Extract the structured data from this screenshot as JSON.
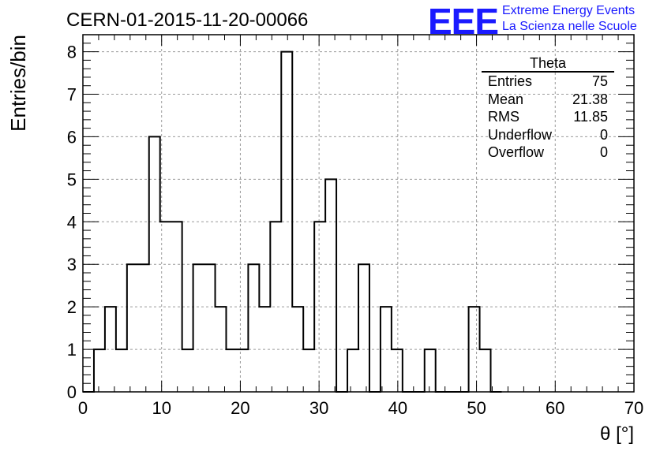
{
  "title": "CERN-01-2015-11-20-00066",
  "logo": {
    "text": "EEE",
    "line1": "Extreme Energy Events",
    "line2": "La Scienza nelle Scuole",
    "color": "#1a1aff"
  },
  "stats": {
    "name": "Theta",
    "rows": [
      {
        "label": "Entries",
        "value": "75"
      },
      {
        "label": "Mean",
        "value": "21.38"
      },
      {
        "label": "RMS",
        "value": "11.85"
      },
      {
        "label": "Underflow",
        "value": "0"
      },
      {
        "label": "Overflow",
        "value": "0"
      }
    ]
  },
  "chart_data": {
    "type": "bar",
    "histogram": true,
    "xlabel": "θ [°]",
    "ylabel": "Entries/bin",
    "xlim": [
      0,
      70
    ],
    "ylim": [
      0,
      8.4
    ],
    "grid": true,
    "bin_width": 1.4,
    "x_ticks": [
      0,
      10,
      20,
      30,
      40,
      50,
      60,
      70
    ],
    "y_ticks": [
      0,
      1,
      2,
      3,
      4,
      5,
      6,
      7,
      8
    ],
    "x": [
      0.7,
      2.1,
      3.5,
      4.9,
      6.3,
      7.7,
      9.1,
      10.5,
      11.9,
      13.3,
      14.7,
      16.1,
      17.5,
      18.9,
      20.3,
      21.7,
      23.1,
      24.5,
      25.9,
      27.3,
      28.7,
      30.1,
      31.5,
      32.9,
      34.3,
      35.7,
      37.1,
      38.5,
      39.9,
      41.3,
      42.7,
      44.1,
      45.5,
      46.9,
      48.3,
      49.7,
      51.1,
      52.5
    ],
    "values": [
      0,
      1,
      2,
      1,
      3,
      3,
      6,
      4,
      4,
      1,
      3,
      3,
      2,
      1,
      1,
      3,
      2,
      4,
      8,
      2,
      1,
      4,
      5,
      0,
      1,
      3,
      0,
      2,
      1,
      0,
      0,
      1,
      0,
      0,
      0,
      2,
      1,
      0
    ]
  }
}
